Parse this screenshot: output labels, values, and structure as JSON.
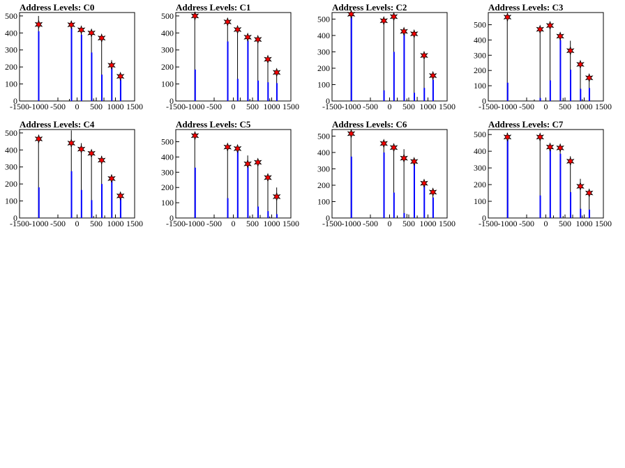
{
  "chart_data": [
    {
      "type": "bar",
      "title": "Address Levels: C0",
      "xlim": [
        -1500,
        1500
      ],
      "ylim": [
        0,
        520
      ],
      "x_ticks": [
        -1500,
        -1000,
        -500,
        0,
        500,
        1000,
        1500
      ],
      "y_ticks": [
        0,
        100,
        200,
        300,
        400,
        500
      ],
      "peaks": [
        {
          "x": -1000,
          "y": 450
        },
        {
          "x": -150,
          "y": 448
        },
        {
          "x": 110,
          "y": 418
        },
        {
          "x": 375,
          "y": 400
        },
        {
          "x": 640,
          "y": 370
        },
        {
          "x": 900,
          "y": 210
        },
        {
          "x": 1130,
          "y": 145
        }
      ],
      "line_spikes": [
        {
          "x": -1005,
          "y": 500
        },
        {
          "x": -150,
          "y": 470
        },
        {
          "x": 110,
          "y": 430
        },
        {
          "x": 375,
          "y": 390
        },
        {
          "x": 640,
          "y": 360
        },
        {
          "x": 900,
          "y": 240
        },
        {
          "x": 1130,
          "y": 150
        }
      ],
      "blue_bars": [
        {
          "x": -1000,
          "y": 410
        },
        {
          "x": -145,
          "y": 430
        },
        {
          "x": 115,
          "y": 390
        },
        {
          "x": 380,
          "y": 285
        },
        {
          "x": 645,
          "y": 155
        },
        {
          "x": 905,
          "y": 195
        },
        {
          "x": 1135,
          "y": 125
        }
      ],
      "small_spikes": [
        {
          "x": -500,
          "y": 18
        },
        {
          "x": -200,
          "y": 12
        },
        {
          "x": 430,
          "y": 15
        },
        {
          "x": 700,
          "y": 20
        }
      ]
    },
    {
      "type": "bar",
      "title": "Address Levels: C1",
      "xlim": [
        -1500,
        1500
      ],
      "ylim": [
        0,
        520
      ],
      "x_ticks": [
        -1500,
        -1000,
        -500,
        0,
        500,
        1000,
        1500
      ],
      "y_ticks": [
        0,
        100,
        200,
        300,
        400,
        500
      ],
      "peaks": [
        {
          "x": -1000,
          "y": 500
        },
        {
          "x": -150,
          "y": 465
        },
        {
          "x": 110,
          "y": 420
        },
        {
          "x": 375,
          "y": 375
        },
        {
          "x": 640,
          "y": 362
        },
        {
          "x": 900,
          "y": 245
        },
        {
          "x": 1130,
          "y": 168
        }
      ],
      "line_spikes": [
        {
          "x": -1005,
          "y": 520
        },
        {
          "x": -150,
          "y": 480
        },
        {
          "x": 110,
          "y": 430
        },
        {
          "x": 375,
          "y": 385
        },
        {
          "x": 640,
          "y": 370
        },
        {
          "x": 900,
          "y": 260
        },
        {
          "x": 1130,
          "y": 175
        }
      ],
      "blue_bars": [
        {
          "x": -995,
          "y": 185
        },
        {
          "x": -145,
          "y": 350
        },
        {
          "x": 115,
          "y": 130
        },
        {
          "x": 380,
          "y": 355
        },
        {
          "x": 645,
          "y": 120
        },
        {
          "x": 905,
          "y": 110
        },
        {
          "x": 1135,
          "y": 105
        }
      ],
      "small_spikes": [
        {
          "x": -500,
          "y": 15
        },
        {
          "x": 180,
          "y": 20
        },
        {
          "x": 430,
          "y": 12
        },
        {
          "x": 950,
          "y": 15
        }
      ]
    },
    {
      "type": "bar",
      "title": "Address Levels: C2",
      "xlim": [
        -1500,
        1500
      ],
      "ylim": [
        0,
        540
      ],
      "x_ticks": [
        -1500,
        -1000,
        -500,
        0,
        500,
        1000,
        1500
      ],
      "y_ticks": [
        0,
        100,
        200,
        300,
        400,
        500
      ],
      "peaks": [
        {
          "x": -1000,
          "y": 530
        },
        {
          "x": -150,
          "y": 490
        },
        {
          "x": 110,
          "y": 515
        },
        {
          "x": 375,
          "y": 425
        },
        {
          "x": 640,
          "y": 410
        },
        {
          "x": 900,
          "y": 278
        },
        {
          "x": 1130,
          "y": 155
        }
      ],
      "line_spikes": [
        {
          "x": -1005,
          "y": 540
        },
        {
          "x": -150,
          "y": 500
        },
        {
          "x": 110,
          "y": 520
        },
        {
          "x": 375,
          "y": 430
        },
        {
          "x": 640,
          "y": 415
        },
        {
          "x": 900,
          "y": 290
        },
        {
          "x": 1130,
          "y": 170
        }
      ],
      "blue_bars": [
        {
          "x": -995,
          "y": 520
        },
        {
          "x": -145,
          "y": 65
        },
        {
          "x": 115,
          "y": 300
        },
        {
          "x": 380,
          "y": 410
        },
        {
          "x": 645,
          "y": 50
        },
        {
          "x": 905,
          "y": 80
        },
        {
          "x": 1135,
          "y": 130
        }
      ],
      "small_spikes": [
        {
          "x": -500,
          "y": 15
        },
        {
          "x": 200,
          "y": 20
        },
        {
          "x": 450,
          "y": 15
        },
        {
          "x": 720,
          "y": 25
        }
      ]
    },
    {
      "type": "bar",
      "title": "Address Levels: C3",
      "xlim": [
        -1500,
        1500
      ],
      "ylim": [
        0,
        580
      ],
      "x_ticks": [
        -1500,
        -1000,
        -500,
        0,
        500,
        1000,
        1500
      ],
      "y_ticks": [
        0,
        100,
        200,
        300,
        400,
        500
      ],
      "peaks": [
        {
          "x": -1000,
          "y": 550
        },
        {
          "x": -150,
          "y": 470
        },
        {
          "x": 110,
          "y": 495
        },
        {
          "x": 375,
          "y": 425
        },
        {
          "x": 640,
          "y": 330
        },
        {
          "x": 900,
          "y": 240
        },
        {
          "x": 1130,
          "y": 152
        }
      ],
      "line_spikes": [
        {
          "x": -1005,
          "y": 560
        },
        {
          "x": -150,
          "y": 480
        },
        {
          "x": 110,
          "y": 500
        },
        {
          "x": 375,
          "y": 435
        },
        {
          "x": 640,
          "y": 395
        },
        {
          "x": 900,
          "y": 250
        },
        {
          "x": 1130,
          "y": 175
        }
      ],
      "blue_bars": [
        {
          "x": -995,
          "y": 120
        },
        {
          "x": -145,
          "y": 20
        },
        {
          "x": 115,
          "y": 135
        },
        {
          "x": 380,
          "y": 400
        },
        {
          "x": 645,
          "y": 205
        },
        {
          "x": 905,
          "y": 80
        },
        {
          "x": 1135,
          "y": 85
        }
      ],
      "small_spikes": [
        {
          "x": -500,
          "y": 15
        },
        {
          "x": -300,
          "y": 10
        },
        {
          "x": 450,
          "y": 20
        },
        {
          "x": 950,
          "y": 12
        }
      ]
    },
    {
      "type": "bar",
      "title": "Address Levels: C4",
      "xlim": [
        -1500,
        1500
      ],
      "ylim": [
        0,
        520
      ],
      "x_ticks": [
        -1500,
        -1000,
        -500,
        0,
        500,
        1000,
        1500
      ],
      "y_ticks": [
        0,
        100,
        200,
        300,
        400,
        500
      ],
      "peaks": [
        {
          "x": -1000,
          "y": 465
        },
        {
          "x": -150,
          "y": 440
        },
        {
          "x": 110,
          "y": 405
        },
        {
          "x": 375,
          "y": 380
        },
        {
          "x": 640,
          "y": 340
        },
        {
          "x": 900,
          "y": 232
        },
        {
          "x": 1130,
          "y": 130
        }
      ],
      "line_spikes": [
        {
          "x": -1005,
          "y": 480
        },
        {
          "x": -150,
          "y": 515
        },
        {
          "x": 110,
          "y": 440
        },
        {
          "x": 375,
          "y": 390
        },
        {
          "x": 640,
          "y": 365
        },
        {
          "x": 900,
          "y": 240
        },
        {
          "x": 1130,
          "y": 140
        }
      ],
      "blue_bars": [
        {
          "x": -995,
          "y": 180
        },
        {
          "x": -145,
          "y": 275
        },
        {
          "x": 115,
          "y": 165
        },
        {
          "x": 380,
          "y": 105
        },
        {
          "x": 645,
          "y": 200
        },
        {
          "x": 905,
          "y": 225
        },
        {
          "x": 1135,
          "y": 115
        }
      ],
      "small_spikes": [
        {
          "x": -500,
          "y": 10
        },
        {
          "x": 430,
          "y": 12
        },
        {
          "x": 720,
          "y": 15
        }
      ]
    },
    {
      "type": "bar",
      "title": "Address Levels: C5",
      "xlim": [
        -1500,
        1500
      ],
      "ylim": [
        0,
        580
      ],
      "x_ticks": [
        -1500,
        -1000,
        -500,
        0,
        500,
        1000,
        1500
      ],
      "y_ticks": [
        0,
        100,
        200,
        300,
        400,
        500
      ],
      "peaks": [
        {
          "x": -1000,
          "y": 540
        },
        {
          "x": -150,
          "y": 465
        },
        {
          "x": 110,
          "y": 455
        },
        {
          "x": 375,
          "y": 355
        },
        {
          "x": 640,
          "y": 365
        },
        {
          "x": 900,
          "y": 265
        },
        {
          "x": 1130,
          "y": 140
        }
      ],
      "line_spikes": [
        {
          "x": -1005,
          "y": 560
        },
        {
          "x": -150,
          "y": 475
        },
        {
          "x": 110,
          "y": 465
        },
        {
          "x": 375,
          "y": 410
        },
        {
          "x": 640,
          "y": 375
        },
        {
          "x": 900,
          "y": 270
        },
        {
          "x": 1130,
          "y": 200
        }
      ],
      "blue_bars": [
        {
          "x": -995,
          "y": 330
        },
        {
          "x": -145,
          "y": 130
        },
        {
          "x": 115,
          "y": 440
        },
        {
          "x": 380,
          "y": 345
        },
        {
          "x": 645,
          "y": 75
        },
        {
          "x": 905,
          "y": 45
        },
        {
          "x": 1135,
          "y": 25
        }
      ],
      "small_spikes": [
        {
          "x": -500,
          "y": 12
        },
        {
          "x": 430,
          "y": 15
        },
        {
          "x": 700,
          "y": 20
        },
        {
          "x": 950,
          "y": 10
        }
      ]
    },
    {
      "type": "bar",
      "title": "Address Levels: C6",
      "xlim": [
        -1500,
        1500
      ],
      "ylim": [
        0,
        540
      ],
      "x_ticks": [
        -1500,
        -1000,
        -500,
        0,
        500,
        1000,
        1500
      ],
      "y_ticks": [
        0,
        100,
        200,
        300,
        400,
        500
      ],
      "peaks": [
        {
          "x": -1000,
          "y": 515
        },
        {
          "x": -150,
          "y": 455
        },
        {
          "x": 110,
          "y": 430
        },
        {
          "x": 375,
          "y": 365
        },
        {
          "x": 640,
          "y": 345
        },
        {
          "x": 900,
          "y": 212
        },
        {
          "x": 1130,
          "y": 158
        }
      ],
      "line_spikes": [
        {
          "x": -1005,
          "y": 530
        },
        {
          "x": -150,
          "y": 465
        },
        {
          "x": 110,
          "y": 440
        },
        {
          "x": 375,
          "y": 420
        },
        {
          "x": 640,
          "y": 355
        },
        {
          "x": 900,
          "y": 225
        },
        {
          "x": 1130,
          "y": 165
        }
      ],
      "blue_bars": [
        {
          "x": -995,
          "y": 375
        },
        {
          "x": -145,
          "y": 400
        },
        {
          "x": 115,
          "y": 155
        },
        {
          "x": 380,
          "y": 30
        },
        {
          "x": 645,
          "y": 335
        },
        {
          "x": 905,
          "y": 200
        },
        {
          "x": 1135,
          "y": 125
        }
      ],
      "small_spikes": [
        {
          "x": -500,
          "y": 15
        },
        {
          "x": 200,
          "y": 15
        },
        {
          "x": 450,
          "y": 25
        },
        {
          "x": 720,
          "y": 15
        }
      ]
    },
    {
      "type": "bar",
      "title": "Address Levels: C7",
      "xlim": [
        -1500,
        1500
      ],
      "ylim": [
        0,
        530
      ],
      "x_ticks": [
        -1500,
        -1000,
        -500,
        0,
        500,
        1000,
        1500
      ],
      "y_ticks": [
        0,
        100,
        200,
        300,
        400,
        500
      ],
      "peaks": [
        {
          "x": -1000,
          "y": 485
        },
        {
          "x": -150,
          "y": 485
        },
        {
          "x": 110,
          "y": 425
        },
        {
          "x": 375,
          "y": 420
        },
        {
          "x": 640,
          "y": 340
        },
        {
          "x": 900,
          "y": 190
        },
        {
          "x": 1130,
          "y": 150
        }
      ],
      "line_spikes": [
        {
          "x": -1005,
          "y": 510
        },
        {
          "x": -150,
          "y": 495
        },
        {
          "x": 110,
          "y": 435
        },
        {
          "x": 375,
          "y": 430
        },
        {
          "x": 640,
          "y": 370
        },
        {
          "x": 900,
          "y": 235
        },
        {
          "x": 1130,
          "y": 165
        }
      ],
      "blue_bars": [
        {
          "x": -995,
          "y": 470
        },
        {
          "x": -145,
          "y": 135
        },
        {
          "x": 115,
          "y": 410
        },
        {
          "x": 380,
          "y": 385
        },
        {
          "x": 645,
          "y": 155
        },
        {
          "x": 905,
          "y": 55
        },
        {
          "x": 1135,
          "y": 50
        }
      ],
      "small_spikes": [
        {
          "x": -500,
          "y": 12
        },
        {
          "x": 200,
          "y": 15
        },
        {
          "x": 450,
          "y": 12
        },
        {
          "x": 700,
          "y": 20
        },
        {
          "x": 950,
          "y": 15
        }
      ]
    }
  ]
}
